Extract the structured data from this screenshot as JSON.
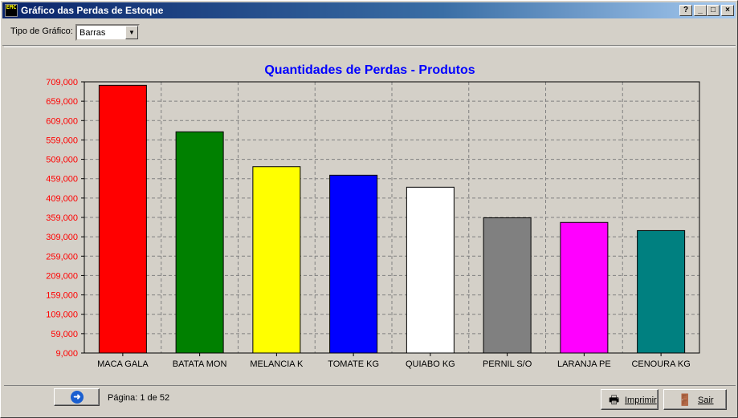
{
  "window": {
    "title": "Gráfico das Perdas de Estoque",
    "icon_text": "EMC",
    "controls": {
      "help": "?",
      "minimize": "_",
      "maximize": "□",
      "close": "×"
    }
  },
  "toolbar": {
    "chart_type_label": "Tipo de Gráfico:",
    "chart_type_value": "Barras"
  },
  "footer": {
    "page_text": "Página: 1 de 52",
    "print_label": "Imprimir",
    "exit_label": "Sair"
  },
  "colors": {
    "title": "#0000ff",
    "ytick": "#ff0000"
  },
  "chart_data": {
    "type": "bar",
    "title": "Quantidades de Perdas - Produtos",
    "categories": [
      "MACA GALA",
      "BATATA MON",
      "MELANCIA K",
      "TOMATE KG",
      "QUIABO KG",
      "PERNIL S/O",
      "LARANJA PE",
      "CENOURA KG"
    ],
    "values": [
      700000,
      580000,
      490000,
      468000,
      437000,
      358000,
      346000,
      325000
    ],
    "bar_colors": [
      "#ff0000",
      "#008000",
      "#ffff00",
      "#0000ff",
      "#ffffff",
      "#808080",
      "#ff00ff",
      "#008080"
    ],
    "yticks": [
      "9,000",
      "59,000",
      "109,000",
      "159,000",
      "209,000",
      "259,000",
      "309,000",
      "359,000",
      "409,000",
      "459,000",
      "509,000",
      "559,000",
      "609,000",
      "659,000",
      "709,000"
    ],
    "ylim": [
      9000,
      709000
    ],
    "grid": true
  }
}
